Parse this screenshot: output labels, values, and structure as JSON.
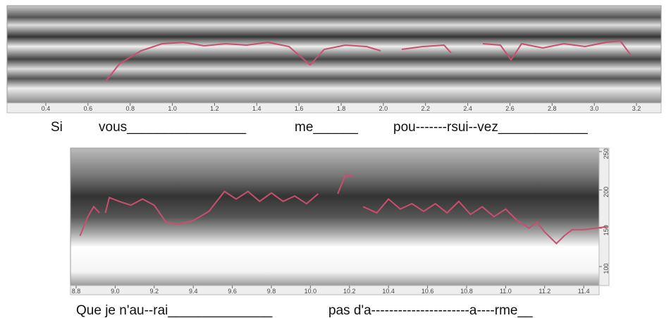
{
  "top": {
    "xticks": [
      0.4,
      0.6,
      0.8,
      {
        "value": 1,
        "label": "1.0"
      },
      1.2,
      1.4,
      1.6,
      1.8,
      {
        "value": 2,
        "label": "2.0"
      },
      2.2,
      2.4,
      2.6,
      2.8,
      {
        "value": 3,
        "label": "3.0"
      },
      3.2
    ],
    "lyrics": [
      "Si",
      "vous________________",
      "me______",
      "pou-------rsui--vez____________"
    ]
  },
  "bottom": {
    "xticks": [
      8.8,
      {
        "value": 9,
        "label": "9.0"
      },
      9.2,
      9.4,
      9.6,
      9.8,
      {
        "value": 10,
        "label": "10.0"
      },
      10.2,
      10.4,
      10.6,
      10.8,
      {
        "value": 11,
        "label": "11.0"
      },
      11.2,
      11.4
    ],
    "yticks": [
      100,
      150,
      200,
      250
    ],
    "pitch": {
      "x": [
        8.82,
        8.86,
        8.89,
        8.92,
        null,
        8.95,
        8.97,
        9.02,
        9.08,
        9.14,
        9.2,
        9.26,
        9.32,
        9.4,
        9.48,
        9.56,
        9.62,
        9.68,
        9.74,
        9.8,
        9.86,
        9.92,
        9.98,
        10.04,
        null,
        10.14,
        10.18,
        10.22,
        null,
        10.27,
        10.34,
        10.4,
        10.46,
        10.52,
        10.58,
        10.64,
        10.7,
        10.76,
        10.82,
        10.88,
        10.94,
        11.0,
        11.06,
        11.12,
        11.16,
        11.2,
        11.26,
        11.3,
        11.34,
        11.4,
        11.46,
        11.52
      ],
      "values": [
        140,
        165,
        178,
        170,
        null,
        170,
        190,
        185,
        180,
        188,
        180,
        158,
        155,
        160,
        172,
        198,
        188,
        198,
        185,
        196,
        185,
        192,
        182,
        195,
        null,
        195,
        220,
        218,
        null,
        178,
        170,
        188,
        175,
        182,
        172,
        182,
        170,
        185,
        168,
        178,
        165,
        175,
        160,
        150,
        158,
        145,
        130,
        140,
        148,
        148,
        150,
        152
      ]
    },
    "lyrics": [
      "Que je n'au--rai______________",
      "pas d'a----------------------a----rme__"
    ]
  }
}
